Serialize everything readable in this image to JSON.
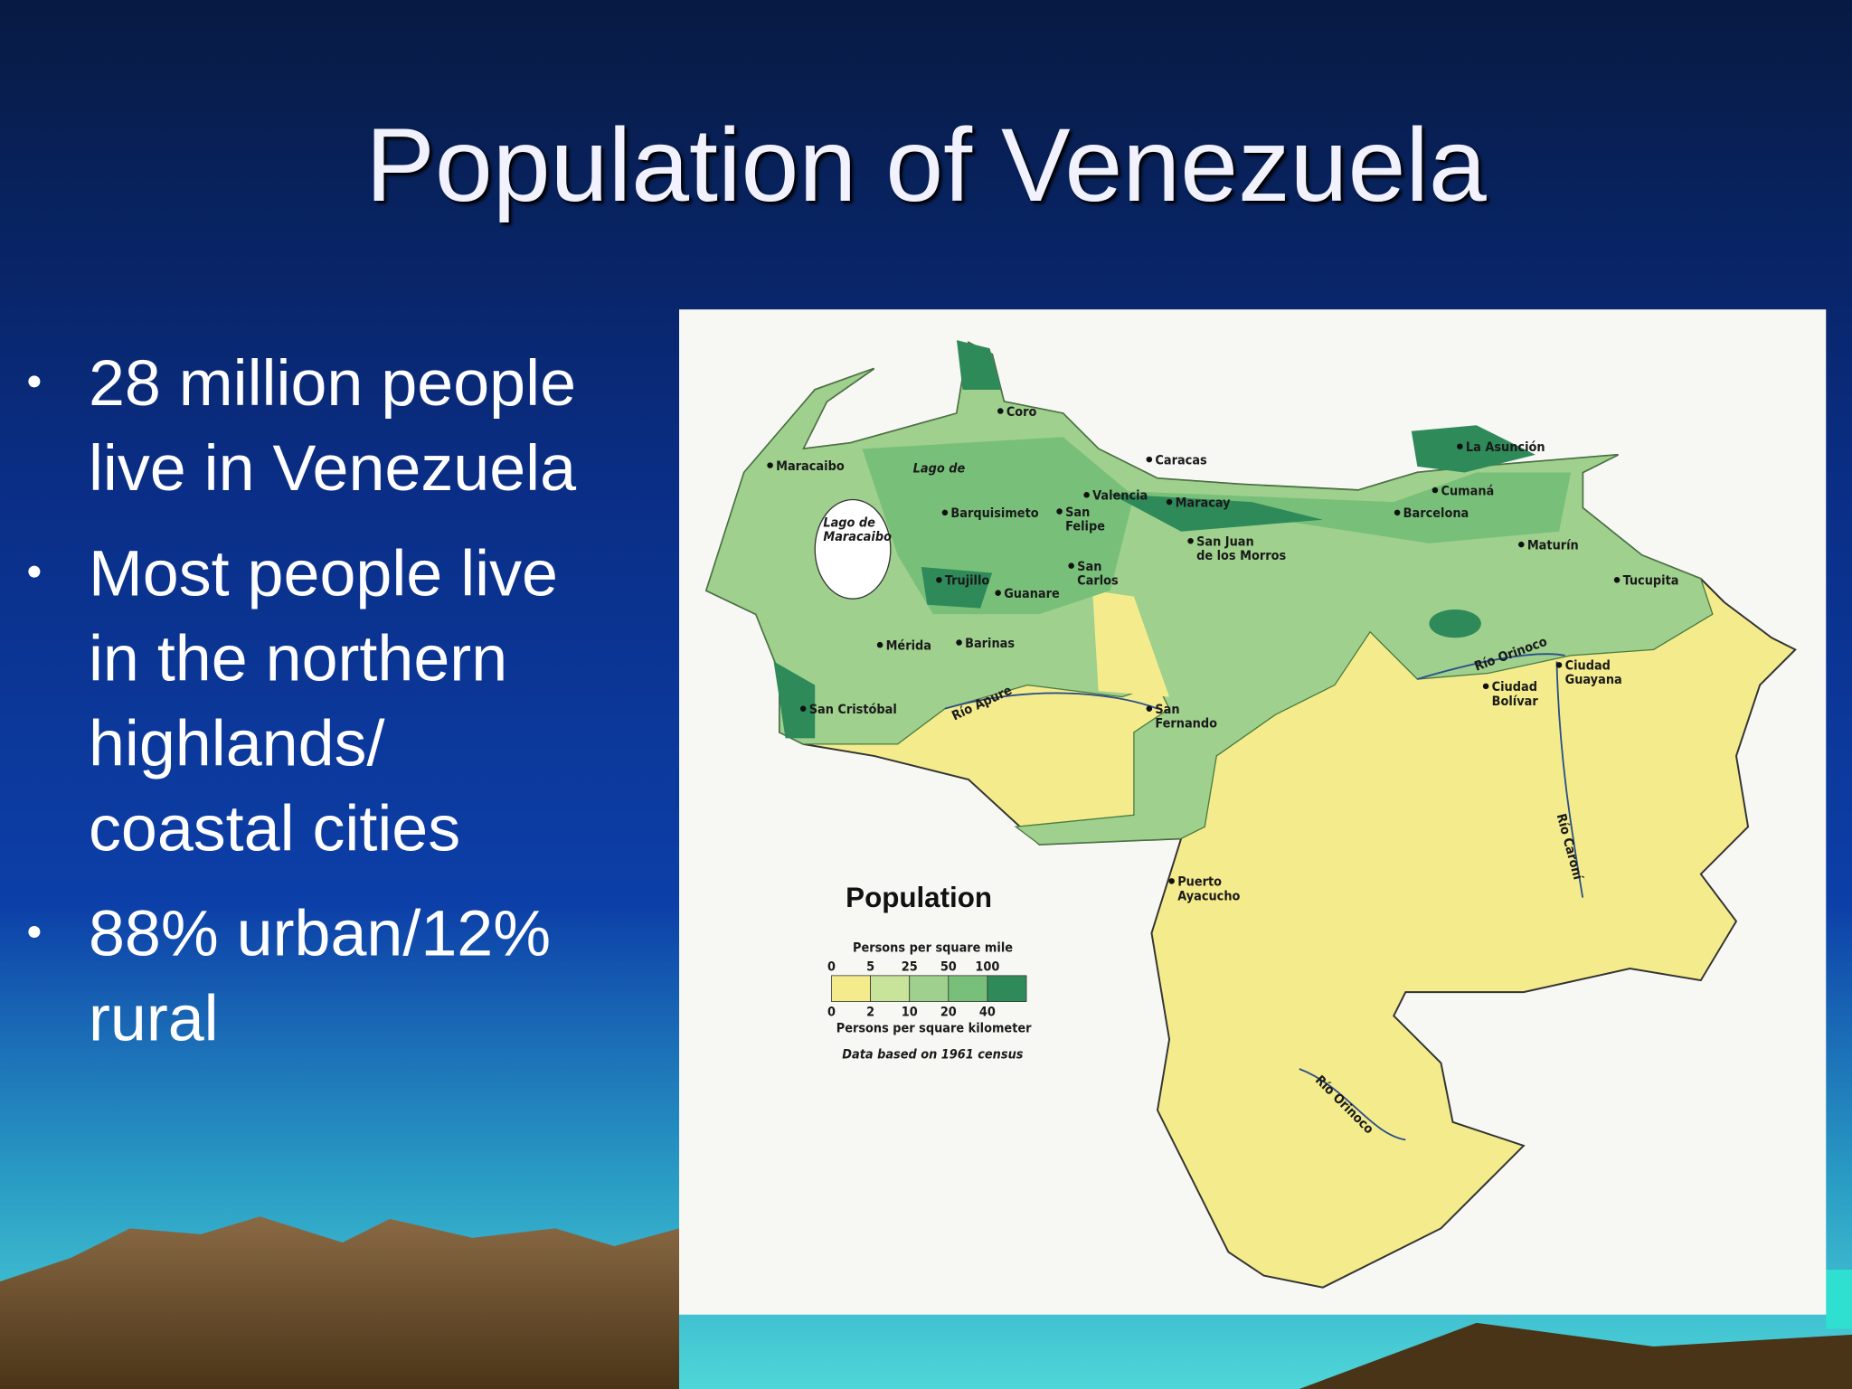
{
  "title": "Population of Venezuela",
  "bullets": [
    [
      "28 million people",
      "live in Venezuela"
    ],
    [
      "Most people live",
      "in the northern",
      "highlands/",
      "coastal cities"
    ],
    [
      "88% urban/12%",
      "rural"
    ]
  ],
  "map": {
    "legend_title": "Population",
    "legend_top_caption": "Persons per square mile",
    "legend_top_ticks": [
      "0",
      "5",
      "25",
      "50",
      "100"
    ],
    "legend_bottom_ticks": [
      "0",
      "2",
      "10",
      "20",
      "40"
    ],
    "legend_bottom_caption": "Persons per square kilometer",
    "legend_note": "Data based on 1961 census",
    "places": [
      "Coro",
      "Maracaibo",
      "Lago de",
      [
        "Lago de",
        "Maracaibo"
      ],
      "Caracas",
      "La Asunción",
      "Cumaná",
      "Barcelona",
      "Maturín",
      "Tucupita",
      "Barquisimeto",
      "Valencia",
      "Maracay",
      [
        "San",
        "Felipe"
      ],
      [
        "San",
        "Carlos"
      ],
      "Trujillo",
      "Guanare",
      "Mérida",
      "Barinas",
      "San Cristóbal",
      [
        "San Juan",
        "de los Morros"
      ],
      [
        "San",
        "Fernando"
      ],
      [
        "Ciudad",
        "Bolívar"
      ],
      [
        "Ciudad",
        "Guayana"
      ],
      [
        "Puerto",
        "Ayacucho"
      ],
      "Río Orinoco",
      "Río Apure",
      "Río Caroní",
      "Río Orinoco"
    ]
  }
}
